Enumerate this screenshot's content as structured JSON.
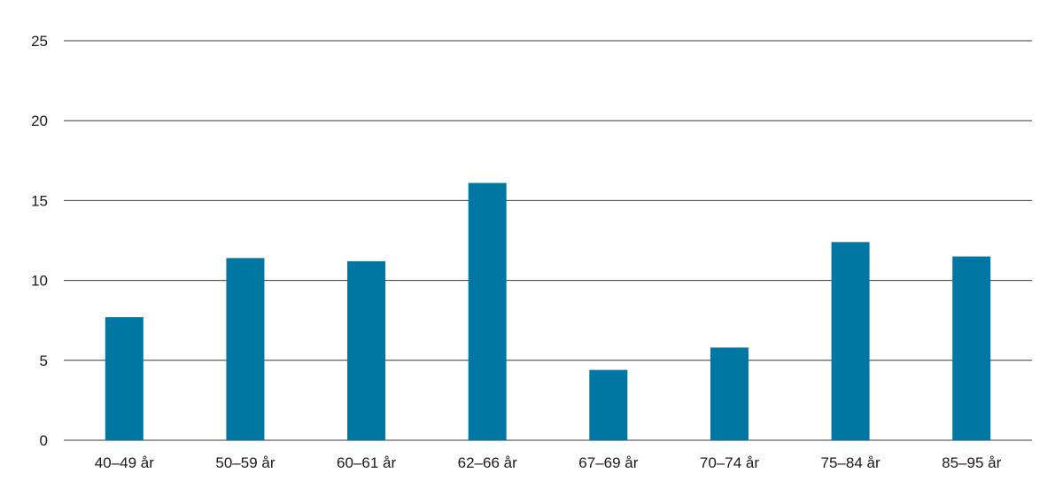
{
  "chart_data": {
    "type": "bar",
    "title": "",
    "xlabel": "",
    "ylabel": "",
    "categories": [
      "40–49 år",
      "50–59 år",
      "60–61 år",
      "62–66 år",
      "67–69 år",
      "70–74 år",
      "75–84 år",
      "85–95 år"
    ],
    "values": [
      7.7,
      11.4,
      11.2,
      16.1,
      4.4,
      5.8,
      12.4,
      11.5
    ],
    "ylim": [
      0,
      25
    ],
    "yticks": [
      "0",
      "5",
      "10",
      "15",
      "20",
      "25"
    ],
    "grid": true,
    "legend": "none",
    "colors": {
      "bar": "#0077a3",
      "grid": "#3a3a3a"
    }
  }
}
